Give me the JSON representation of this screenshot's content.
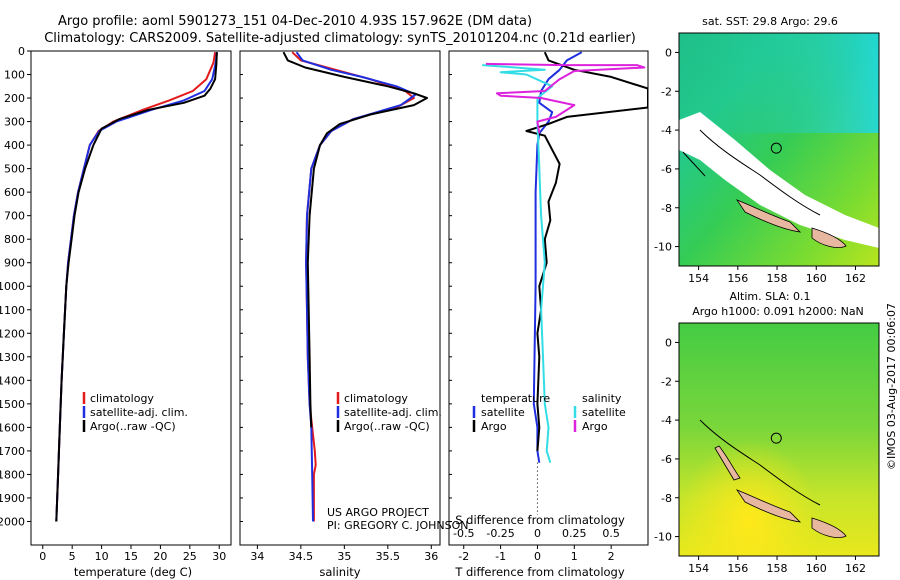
{
  "title": {
    "line1": "Argo profile: aoml 5901273_151 04-Dec-2010 4.93S 157.962E (DM data)",
    "line2": "Climatology: CARS2009. Satellite-adjusted climatology: synTS_20101204.nc (0.21d earlier)"
  },
  "chart_data": [
    {
      "type": "line",
      "id": "temperature",
      "xlabel": "temperature (deg C)",
      "ylabel": "",
      "xlim": [
        -2,
        32
      ],
      "ylim": [
        2100,
        0
      ],
      "xticks": [
        0,
        5,
        10,
        15,
        20,
        25,
        30
      ],
      "yticks": [
        0,
        100,
        200,
        300,
        400,
        500,
        600,
        700,
        800,
        900,
        1000,
        1100,
        1200,
        1300,
        1400,
        1500,
        1600,
        1700,
        1800,
        1900,
        2000
      ],
      "legend": [
        "climatology",
        "satellite-adj. clim.",
        "Argo(..raw -QC)"
      ],
      "series": [
        {
          "name": "climatology",
          "color": "#e31a1c",
          "points": [
            [
              29.3,
              5
            ],
            [
              29.0,
              50
            ],
            [
              27.8,
              120
            ],
            [
              25.5,
              170
            ],
            [
              21.5,
              210
            ],
            [
              17,
              250
            ],
            [
              12,
              300
            ],
            [
              9.5,
              340
            ],
            [
              8,
              400
            ],
            [
              7,
              500
            ],
            [
              6,
              600
            ],
            [
              5.3,
              700
            ],
            [
              4.8,
              800
            ],
            [
              4.3,
              900
            ],
            [
              4,
              1000
            ],
            [
              3.6,
              1200
            ],
            [
              3.2,
              1400
            ],
            [
              2.9,
              1600
            ],
            [
              2.6,
              1800
            ],
            [
              2.3,
              2000
            ]
          ]
        },
        {
          "name": "satellite-adj. clim.",
          "color": "#1f2fe0",
          "points": [
            [
              29.6,
              5
            ],
            [
              29.4,
              50
            ],
            [
              28.8,
              120
            ],
            [
              27.5,
              170
            ],
            [
              24,
              210
            ],
            [
              18.5,
              250
            ],
            [
              12.5,
              300
            ],
            [
              9.6,
              340
            ],
            [
              8,
              400
            ],
            [
              7,
              500
            ],
            [
              6,
              600
            ],
            [
              5.3,
              700
            ],
            [
              4.8,
              800
            ],
            [
              4.3,
              900
            ],
            [
              4,
              1000
            ],
            [
              3.6,
              1200
            ],
            [
              3.2,
              1400
            ],
            [
              2.9,
              1600
            ],
            [
              2.6,
              1800
            ],
            [
              2.3,
              2000
            ]
          ]
        },
        {
          "name": "Argo(..raw -QC)",
          "color": "#000000",
          "points": [
            [
              29.6,
              5
            ],
            [
              29.5,
              60
            ],
            [
              29.3,
              120
            ],
            [
              28.5,
              160
            ],
            [
              27.5,
              190
            ],
            [
              24,
              220
            ],
            [
              18,
              250
            ],
            [
              13,
              290
            ],
            [
              10,
              330
            ],
            [
              8.6,
              400
            ],
            [
              7.2,
              500
            ],
            [
              6.1,
              600
            ],
            [
              5.4,
              700
            ],
            [
              4.9,
              800
            ],
            [
              4.4,
              900
            ],
            [
              4,
              1000
            ],
            [
              3.6,
              1200
            ],
            [
              3.2,
              1400
            ],
            [
              2.9,
              1600
            ],
            [
              2.6,
              1800
            ],
            [
              2.3,
              2000
            ]
          ]
        }
      ]
    },
    {
      "type": "line",
      "id": "salinity",
      "xlabel": "salinity",
      "xlim": [
        33.8,
        36.1
      ],
      "ylim": [
        2100,
        0
      ],
      "xticks": [
        34,
        34.5,
        35,
        35.5,
        36
      ],
      "legend": [
        "climatology",
        "satellite-adj. clim.",
        "Argo(..raw -QC)"
      ],
      "series": [
        {
          "name": "climatology",
          "color": "#e31a1c",
          "points": [
            [
              34.4,
              5
            ],
            [
              34.5,
              40
            ],
            [
              34.9,
              80
            ],
            [
              35.3,
              120
            ],
            [
              35.7,
              170
            ],
            [
              35.8,
              200
            ],
            [
              35.6,
              240
            ],
            [
              35.1,
              290
            ],
            [
              34.85,
              340
            ],
            [
              34.72,
              400
            ],
            [
              34.62,
              500
            ],
            [
              34.57,
              700
            ],
            [
              34.56,
              900
            ],
            [
              34.57,
              1100
            ],
            [
              34.58,
              1300
            ],
            [
              34.6,
              1500
            ],
            [
              34.63,
              1600
            ],
            [
              34.66,
              1700
            ],
            [
              34.67,
              1760
            ],
            [
              34.65,
              1800
            ],
            [
              34.65,
              2000
            ]
          ]
        },
        {
          "name": "satellite-adj. clim.",
          "color": "#1f2fe0",
          "points": [
            [
              34.45,
              5
            ],
            [
              34.52,
              40
            ],
            [
              34.85,
              80
            ],
            [
              35.2,
              110
            ],
            [
              35.6,
              150
            ],
            [
              35.82,
              185
            ],
            [
              35.65,
              230
            ],
            [
              35.1,
              290
            ],
            [
              34.85,
              340
            ],
            [
              34.72,
              400
            ],
            [
              34.62,
              500
            ],
            [
              34.57,
              700
            ],
            [
              34.56,
              900
            ],
            [
              34.57,
              1100
            ],
            [
              34.58,
              1300
            ],
            [
              34.6,
              1500
            ],
            [
              34.62,
              1600
            ],
            [
              34.63,
              1800
            ],
            [
              34.64,
              2000
            ]
          ]
        },
        {
          "name": "Argo(..raw -QC)",
          "color": "#000000",
          "points": [
            [
              34.3,
              5
            ],
            [
              34.35,
              40
            ],
            [
              34.55,
              70
            ],
            [
              35.0,
              110
            ],
            [
              35.5,
              150
            ],
            [
              35.8,
              180
            ],
            [
              35.95,
              200
            ],
            [
              35.8,
              230
            ],
            [
              35.3,
              270
            ],
            [
              34.95,
              310
            ],
            [
              34.8,
              350
            ],
            [
              34.72,
              400
            ],
            [
              34.65,
              500
            ],
            [
              34.6,
              700
            ],
            [
              34.58,
              900
            ],
            [
              34.59,
              1100
            ],
            [
              34.6,
              1300
            ],
            [
              34.61,
              1500
            ],
            [
              34.62,
              1600
            ]
          ]
        }
      ]
    },
    {
      "type": "line",
      "id": "difference",
      "xlabel": "T difference from climatology",
      "xlabel2": "S difference from climatology",
      "xlim": [
        -2.4,
        3.0
      ],
      "ylim": [
        2100,
        0
      ],
      "xticks": [
        -2,
        -1,
        0,
        1,
        2
      ],
      "xticks2": [
        "-0.5",
        "-0.25",
        "0",
        "0.25",
        "0.5"
      ],
      "xticks2_pos": [
        -2,
        -1,
        0,
        1,
        2
      ],
      "legend_headers": [
        "temperature",
        "salinity"
      ],
      "legend": [
        "satellite",
        "Argo",
        "satellite",
        "Argo"
      ],
      "series": [
        {
          "name": "T satellite",
          "color": "#1f2fe0",
          "points": [
            [
              1.2,
              5
            ],
            [
              0.8,
              40
            ],
            [
              0.6,
              80
            ],
            [
              0.3,
              120
            ],
            [
              0.1,
              170
            ],
            [
              0.05,
              220
            ],
            [
              0.4,
              260
            ],
            [
              0.3,
              300
            ],
            [
              0.05,
              350
            ],
            [
              0,
              400
            ],
            [
              -0.05,
              600
            ],
            [
              -0.05,
              1000
            ],
            [
              -0.1,
              1500
            ],
            [
              0,
              1600
            ],
            [
              0,
              1700
            ],
            [
              0.05,
              1750
            ]
          ]
        },
        {
          "name": "T Argo",
          "color": "#000000",
          "points": [
            [
              0.2,
              5
            ],
            [
              0.3,
              40
            ],
            [
              1.0,
              80
            ],
            [
              2.0,
              110
            ],
            [
              3.0,
              160
            ],
            [
              3.0,
              240
            ],
            [
              0.8,
              280
            ],
            [
              0.3,
              310
            ],
            [
              -0.3,
              340
            ],
            [
              0.2,
              360
            ],
            [
              0.4,
              420
            ],
            [
              0.6,
              480
            ],
            [
              0.5,
              560
            ],
            [
              0.3,
              640
            ],
            [
              0.35,
              720
            ],
            [
              0.2,
              800
            ],
            [
              0.25,
              900
            ],
            [
              0.05,
              1000
            ],
            [
              0.1,
              1100
            ],
            [
              0,
              1200
            ],
            [
              0.05,
              1300
            ],
            [
              0,
              1500
            ],
            [
              0.05,
              1600
            ],
            [
              0,
              1700
            ]
          ]
        },
        {
          "name": "S satellite",
          "color": "#33dde6",
          "points": [
            [
              -1.5,
              60
            ],
            [
              -0.6,
              70
            ],
            [
              0.2,
              80
            ],
            [
              -1.0,
              90
            ],
            [
              -0.3,
              100
            ],
            [
              0.4,
              150
            ],
            [
              0,
              200
            ],
            [
              0,
              300
            ],
            [
              0.05,
              500
            ],
            [
              0.1,
              700
            ],
            [
              0.2,
              900
            ],
            [
              0.1,
              1100
            ],
            [
              0.15,
              1300
            ],
            [
              0.2,
              1500
            ],
            [
              0.3,
              1600
            ],
            [
              0.25,
              1700
            ],
            [
              0.35,
              1750
            ]
          ]
        },
        {
          "name": "S Argo",
          "color": "#dd22dd",
          "points": [
            [
              -1.4,
              55
            ],
            [
              0.7,
              60
            ],
            [
              2.7,
              60
            ],
            [
              2.9,
              70
            ],
            [
              1.0,
              85
            ],
            [
              0.6,
              120
            ],
            [
              0.2,
              170
            ],
            [
              -1.1,
              180
            ],
            [
              -1.0,
              190
            ],
            [
              0.1,
              200
            ],
            [
              1.0,
              230
            ],
            [
              0.5,
              280
            ],
            [
              0,
              300
            ],
            [
              0.05,
              350
            ]
          ]
        }
      ]
    }
  ],
  "maps": {
    "sst": {
      "title": "sat. SST: 29.8  Argo: 29.6",
      "xticks": [
        "154",
        "156",
        "158",
        "160",
        "162"
      ],
      "yticks": [
        "0",
        "-2",
        "-4",
        "-6",
        "-8",
        "-10"
      ],
      "marker_lon": 157.962,
      "marker_lat": -4.93
    },
    "sla": {
      "title1": "Altim. SLA: 0.1",
      "title2": "Argo h1000: 0.091 h2000: NaN",
      "xticks": [
        "154",
        "156",
        "158",
        "160",
        "162"
      ],
      "yticks": [
        "0",
        "-2",
        "-4",
        "-6",
        "-8",
        "-10"
      ],
      "marker_lon": 157.962,
      "marker_lat": -4.93
    }
  },
  "annotations": {
    "project": "US ARGO PROJECT",
    "pi": "PI: GREGORY C. JOHNSON",
    "credit": "©IMOS 03-Aug-2017 00:06:07"
  }
}
